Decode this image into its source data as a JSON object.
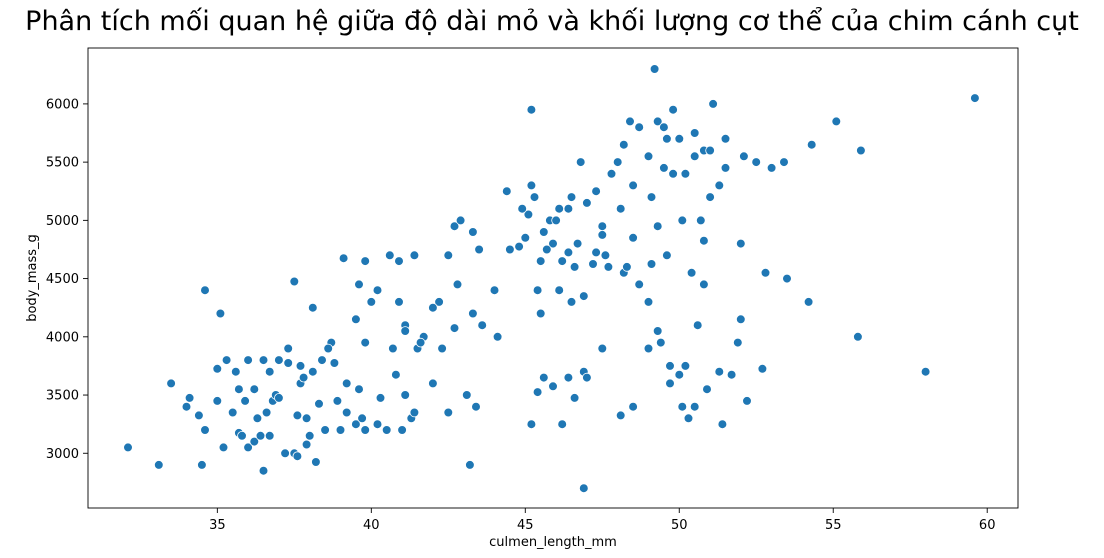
{
  "chart_data": {
    "type": "scatter",
    "title": "Phân tích mối quan hệ giữa độ dài mỏ và khối lượng cơ thể của chim cánh cụt",
    "xlabel": "culmen_length_mm",
    "ylabel": "body_mass_g",
    "xlim": [
      30.8,
      61.0
    ],
    "ylim": [
      2530,
      6480
    ],
    "xticks": [
      "35",
      "40",
      "45",
      "50",
      "55",
      "60"
    ],
    "yticks": [
      "3000",
      "3500",
      "4000",
      "4500",
      "5000",
      "5500",
      "6000"
    ],
    "grid": false,
    "marker_color": "#1f77b4",
    "points": [
      [
        32.1,
        3050
      ],
      [
        33.1,
        2900
      ],
      [
        33.5,
        3600
      ],
      [
        34.0,
        3400
      ],
      [
        34.1,
        3475
      ],
      [
        34.4,
        3325
      ],
      [
        34.5,
        2900
      ],
      [
        34.6,
        3200
      ],
      [
        34.6,
        4400
      ],
      [
        35.0,
        3450
      ],
      [
        35.0,
        3725
      ],
      [
        35.1,
        4200
      ],
      [
        35.2,
        3050
      ],
      [
        35.3,
        3800
      ],
      [
        35.5,
        3350
      ],
      [
        35.6,
        3700
      ],
      [
        35.7,
        3550
      ],
      [
        35.7,
        3175
      ],
      [
        35.8,
        3150
      ],
      [
        35.9,
        3450
      ],
      [
        36.0,
        3800
      ],
      [
        36.0,
        3050
      ],
      [
        36.2,
        3100
      ],
      [
        36.2,
        3550
      ],
      [
        36.3,
        3300
      ],
      [
        36.4,
        3150
      ],
      [
        36.5,
        3800
      ],
      [
        36.5,
        2850
      ],
      [
        36.6,
        3350
      ],
      [
        36.7,
        3700
      ],
      [
        36.7,
        3150
      ],
      [
        36.8,
        3450
      ],
      [
        36.9,
        3500
      ],
      [
        37.0,
        3800
      ],
      [
        37.0,
        3475
      ],
      [
        37.2,
        3000
      ],
      [
        37.3,
        3900
      ],
      [
        37.3,
        3775
      ],
      [
        37.5,
        3000
      ],
      [
        37.6,
        2975
      ],
      [
        37.6,
        3325
      ],
      [
        37.7,
        3750
      ],
      [
        37.7,
        3600
      ],
      [
        37.8,
        3650
      ],
      [
        37.9,
        3075
      ],
      [
        37.9,
        3300
      ],
      [
        38.0,
        3150
      ],
      [
        38.1,
        3700
      ],
      [
        38.1,
        4250
      ],
      [
        38.2,
        2925
      ],
      [
        38.3,
        3425
      ],
      [
        38.4,
        3800
      ],
      [
        38.5,
        3200
      ],
      [
        38.6,
        3900
      ],
      [
        38.7,
        3950
      ],
      [
        38.8,
        3775
      ],
      [
        38.9,
        3450
      ],
      [
        39.0,
        3200
      ],
      [
        39.2,
        3350
      ],
      [
        39.2,
        3600
      ],
      [
        39.5,
        3250
      ],
      [
        39.6,
        3550
      ],
      [
        39.6,
        4450
      ],
      [
        39.7,
        3300
      ],
      [
        39.8,
        3200
      ],
      [
        39.8,
        3950
      ],
      [
        40.0,
        4300
      ],
      [
        40.2,
        3250
      ],
      [
        40.3,
        3475
      ],
      [
        40.5,
        3200
      ],
      [
        40.7,
        3900
      ],
      [
        40.8,
        3675
      ],
      [
        41.0,
        3200
      ],
      [
        41.1,
        3500
      ],
      [
        41.1,
        4100
      ],
      [
        41.3,
        3300
      ],
      [
        41.4,
        3350
      ],
      [
        41.5,
        3900
      ],
      [
        41.7,
        4000
      ],
      [
        42.0,
        3600
      ],
      [
        42.2,
        4300
      ],
      [
        42.5,
        3350
      ],
      [
        42.7,
        4075
      ],
      [
        43.1,
        3500
      ],
      [
        43.2,
        2900
      ],
      [
        43.4,
        3400
      ],
      [
        43.6,
        4100
      ],
      [
        44.1,
        4000
      ],
      [
        41.1,
        4050
      ],
      [
        42.0,
        4250
      ],
      [
        41.4,
        4700
      ],
      [
        39.8,
        4650
      ],
      [
        42.5,
        4700
      ],
      [
        42.7,
        4950
      ],
      [
        40.9,
        4650
      ],
      [
        37.5,
        4475
      ],
      [
        40.6,
        4700
      ],
      [
        42.9,
        5000
      ],
      [
        45.2,
        5950
      ],
      [
        44.4,
        5250
      ],
      [
        45.1,
        5050
      ],
      [
        45.2,
        5300
      ],
      [
        45.3,
        5200
      ],
      [
        45.8,
        5000
      ],
      [
        46.1,
        5100
      ],
      [
        46.4,
        5100
      ],
      [
        46.5,
        4300
      ],
      [
        46.7,
        4800
      ],
      [
        46.8,
        5500
      ],
      [
        47.0,
        5150
      ],
      [
        47.3,
        5250
      ],
      [
        47.6,
        4700
      ],
      [
        47.8,
        5400
      ],
      [
        48.1,
        5100
      ],
      [
        48.2,
        5650
      ],
      [
        48.4,
        5850
      ],
      [
        48.5,
        5300
      ],
      [
        48.7,
        5800
      ],
      [
        49.0,
        5550
      ],
      [
        49.1,
        5200
      ],
      [
        49.2,
        6300
      ],
      [
        49.3,
        5850
      ],
      [
        49.5,
        5800
      ],
      [
        49.6,
        5700
      ],
      [
        49.8,
        5950
      ],
      [
        50.0,
        5700
      ],
      [
        50.2,
        5400
      ],
      [
        50.5,
        5550
      ],
      [
        50.8,
        5600
      ],
      [
        51.1,
        6000
      ],
      [
        51.3,
        5300
      ],
      [
        51.5,
        5450
      ],
      [
        52.1,
        5550
      ],
      [
        52.5,
        5500
      ],
      [
        53.4,
        5500
      ],
      [
        54.3,
        5650
      ],
      [
        55.1,
        5850
      ],
      [
        55.9,
        5600
      ],
      [
        59.6,
        6050
      ],
      [
        46.6,
        4600
      ],
      [
        47.5,
        4875
      ],
      [
        48.5,
        4850
      ],
      [
        49.1,
        4625
      ],
      [
        49.3,
        4950
      ],
      [
        50.1,
        5000
      ],
      [
        50.7,
        5000
      ],
      [
        51.0,
        5200
      ],
      [
        45.5,
        4650
      ],
      [
        45.9,
        4800
      ],
      [
        44.9,
        5100
      ],
      [
        45.7,
        4750
      ],
      [
        46.2,
        4650
      ],
      [
        46.9,
        4350
      ],
      [
        47.7,
        4600
      ],
      [
        48.7,
        4450
      ],
      [
        49.6,
        4700
      ],
      [
        50.4,
        4550
      ],
      [
        43.3,
        4900
      ],
      [
        44.5,
        4750
      ],
      [
        45.4,
        4400
      ],
      [
        45.5,
        4200
      ],
      [
        46.1,
        4400
      ],
      [
        46.4,
        4725
      ],
      [
        47.2,
        4625
      ],
      [
        48.2,
        4550
      ],
      [
        49.0,
        4300
      ],
      [
        49.4,
        3950
      ],
      [
        49.7,
        3750
      ],
      [
        50.0,
        3675
      ],
      [
        50.2,
        3750
      ],
      [
        50.6,
        4100
      ],
      [
        50.9,
        3550
      ],
      [
        51.3,
        3700
      ],
      [
        51.7,
        3675
      ],
      [
        52.0,
        4150
      ],
      [
        52.7,
        3725
      ],
      [
        45.2,
        3250
      ],
      [
        45.4,
        3525
      ],
      [
        45.6,
        3650
      ],
      [
        45.9,
        3575
      ],
      [
        46.2,
        3250
      ],
      [
        46.4,
        3650
      ],
      [
        46.6,
        3475
      ],
      [
        46.9,
        3700
      ],
      [
        47.0,
        3650
      ],
      [
        47.5,
        3900
      ],
      [
        48.1,
        3325
      ],
      [
        48.5,
        3400
      ],
      [
        49.0,
        3900
      ],
      [
        49.3,
        4050
      ],
      [
        49.7,
        3600
      ],
      [
        50.1,
        3400
      ],
      [
        50.3,
        3300
      ],
      [
        50.5,
        3400
      ],
      [
        50.8,
        4450
      ],
      [
        51.4,
        3250
      ],
      [
        51.9,
        3950
      ],
      [
        52.2,
        3450
      ],
      [
        53.5,
        4500
      ],
      [
        54.2,
        4300
      ],
      [
        55.8,
        4000
      ],
      [
        58.0,
        3700
      ],
      [
        46.9,
        2700
      ],
      [
        43.5,
        4750
      ],
      [
        43.3,
        4200
      ],
      [
        42.8,
        4450
      ],
      [
        42.3,
        3900
      ],
      [
        41.6,
        3950
      ],
      [
        40.9,
        4300
      ],
      [
        40.2,
        4400
      ],
      [
        39.5,
        4150
      ],
      [
        39.1,
        4675
      ],
      [
        38.6,
        3900
      ],
      [
        44.0,
        4400
      ],
      [
        45.0,
        4850
      ],
      [
        46.0,
        5000
      ],
      [
        47.5,
        4950
      ],
      [
        48.0,
        5500
      ],
      [
        49.5,
        5450
      ],
      [
        50.5,
        5750
      ],
      [
        51.0,
        5600
      ],
      [
        52.0,
        4800
      ],
      [
        53.0,
        5450
      ],
      [
        44.8,
        4775
      ],
      [
        45.6,
        4900
      ],
      [
        46.5,
        5200
      ],
      [
        47.3,
        4725
      ],
      [
        48.3,
        4600
      ],
      [
        49.8,
        5400
      ],
      [
        50.8,
        4825
      ],
      [
        51.5,
        5700
      ],
      [
        52.8,
        4550
      ]
    ]
  }
}
